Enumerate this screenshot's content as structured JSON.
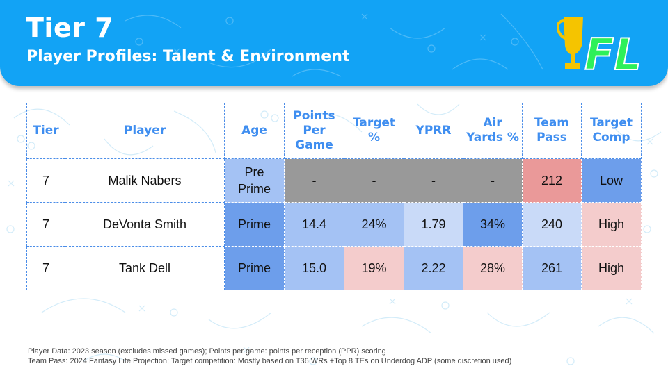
{
  "header": {
    "title": "Tier 7",
    "subtitle": "Player Profiles: Talent & Environment",
    "logo_text": "FL",
    "logo_icon": "trophy-icon",
    "brand_color": "#12a3f5",
    "logo_text_color": "#2ef05a",
    "trophy_color": "#f5c400"
  },
  "table": {
    "columns": [
      "Tier",
      "Player",
      "Age",
      "Points Per Game",
      "Target %",
      "YPRR",
      "Air Yards %",
      "Team Pass",
      "Target Comp"
    ],
    "rows": [
      {
        "tier": "7",
        "player": "Malik Nabers",
        "cells": [
          {
            "value": "Pre Prime",
            "color": "#a4c2f4"
          },
          {
            "value": "-",
            "color": "#999999"
          },
          {
            "value": "-",
            "color": "#999999"
          },
          {
            "value": "-",
            "color": "#999999"
          },
          {
            "value": "-",
            "color": "#999999"
          },
          {
            "value": "212",
            "color": "#ea9999"
          },
          {
            "value": "Low",
            "color": "#6d9eeb"
          }
        ]
      },
      {
        "tier": "7",
        "player": "DeVonta Smith",
        "cells": [
          {
            "value": "Prime",
            "color": "#6d9eeb"
          },
          {
            "value": "14.4",
            "color": "#a4c2f4"
          },
          {
            "value": "24%",
            "color": "#a4c2f4"
          },
          {
            "value": "1.79",
            "color": "#c9daf8"
          },
          {
            "value": "34%",
            "color": "#6d9eeb"
          },
          {
            "value": "240",
            "color": "#c9daf8"
          },
          {
            "value": "High",
            "color": "#f4cccc"
          }
        ]
      },
      {
        "tier": "7",
        "player": "Tank Dell",
        "cells": [
          {
            "value": "Prime",
            "color": "#6d9eeb"
          },
          {
            "value": "15.0",
            "color": "#a4c2f4"
          },
          {
            "value": "19%",
            "color": "#f4cccc"
          },
          {
            "value": "2.22",
            "color": "#a4c2f4"
          },
          {
            "value": "28%",
            "color": "#f4cccc"
          },
          {
            "value": "261",
            "color": "#a4c2f4"
          },
          {
            "value": "High",
            "color": "#f4cccc"
          }
        ]
      }
    ]
  },
  "footnotes": [
    "Player Data: 2023 season (excludes missed games); Points per game: points per reception (PPR) scoring",
    "Team Pass: 2024 Fantasy Life Projection; Target competition: Mostly based on T36 WRs +Top 8 TEs on Underdog ADP (some discretion used)"
  ]
}
